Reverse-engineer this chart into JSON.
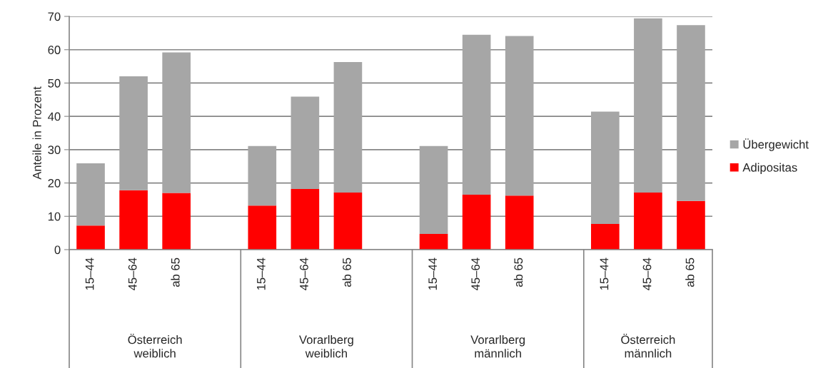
{
  "chart_data": {
    "type": "bar",
    "stacked": true,
    "ylabel": "Anteile in Prozent",
    "categories": [
      "15–44",
      "45–64",
      "ab 65",
      null,
      "15–44",
      "45–64",
      "ab 65",
      null,
      "15–44",
      "45–64",
      "ab 65",
      null,
      "15–44",
      "45–64",
      "ab 65"
    ],
    "series": [
      {
        "name": "Adipositas",
        "color": "#ff0000",
        "values": [
          7.2,
          17.8,
          17.0,
          null,
          13.2,
          18.2,
          17.1,
          null,
          4.7,
          16.5,
          16.2,
          null,
          7.7,
          17.1,
          14.6
        ]
      },
      {
        "name": "Übergewicht",
        "color": "#a6a6a6",
        "values": [
          18.7,
          34.2,
          42.2,
          null,
          17.9,
          27.7,
          39.2,
          null,
          26.4,
          48.0,
          47.9,
          null,
          33.7,
          52.3,
          52.8
        ]
      }
    ],
    "annotations": [
      "Österreich\nweiblich",
      "Vorarlberg\nweiblich",
      "Vorarlberg\nmännlich",
      "Österreich\nmännlich"
    ],
    "ylim": [
      0,
      70
    ],
    "yticks": [
      0,
      10,
      20,
      30,
      40,
      50,
      60,
      70
    ],
    "grid": "y",
    "legend": "right"
  }
}
